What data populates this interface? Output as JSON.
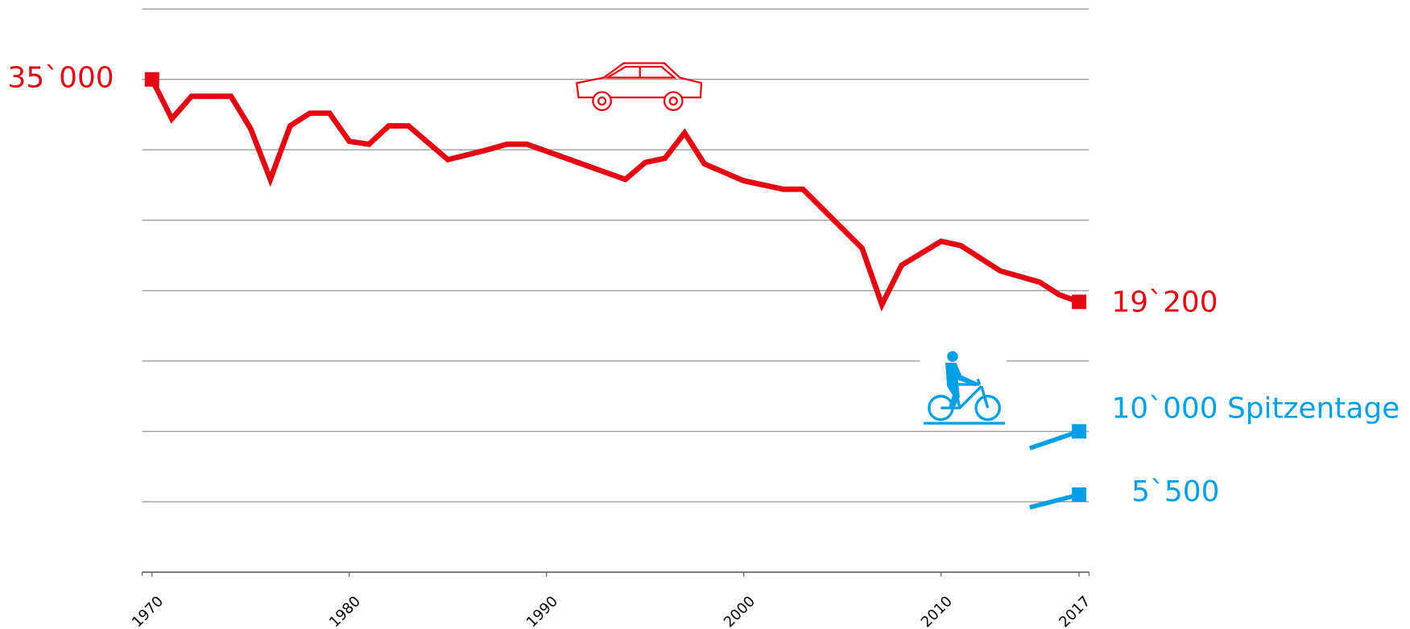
{
  "chart_data": {
    "type": "line",
    "xlim": [
      1969.5,
      2017.5
    ],
    "xticks": [
      1970,
      1980,
      1990,
      2000,
      2010,
      2017
    ],
    "ylim": [
      0,
      40000
    ],
    "yticks": [
      0,
      5000,
      10000,
      15000,
      20000,
      25000,
      30000,
      35000,
      40000
    ],
    "grid": true,
    "series": [
      {
        "color": "#e30613",
        "x": [
          1970,
          1971,
          1972,
          1974,
          1975,
          1976,
          1977,
          1978,
          1979,
          1980,
          1981,
          1982,
          1983,
          1985,
          1987,
          1988,
          1989,
          1994,
          1995,
          1996,
          1997,
          1998,
          2000,
          2002,
          2003,
          2006,
          2007,
          2008,
          2010,
          2011,
          2013,
          2015,
          2016,
          2017
        ],
        "values": [
          35000,
          32200,
          33800,
          33800,
          31500,
          27900,
          31700,
          32600,
          32600,
          30600,
          30400,
          31700,
          31700,
          29300,
          30000,
          30400,
          30400,
          27900,
          29100,
          29400,
          31200,
          29000,
          27800,
          27200,
          27200,
          23000,
          19000,
          21800,
          23500,
          23200,
          21400,
          20600,
          19700,
          19200
        ],
        "value_labels": [
          "35`000",
          null,
          null,
          null,
          null,
          null,
          null,
          null,
          null,
          null,
          null,
          null,
          null,
          null,
          null,
          null,
          null,
          null,
          null,
          null,
          null,
          null,
          null,
          null,
          null,
          null,
          null,
          null,
          null,
          null,
          null,
          null,
          null,
          "19`200"
        ]
      },
      {
        "color": "#009fe3",
        "x": [
          2014.5,
          2017
        ],
        "values": [
          8800,
          10000
        ],
        "value_labels": [
          null,
          "10`000 Spitzentage"
        ]
      },
      {
        "color": "#009fe3",
        "x": [
          2014.5,
          2017
        ],
        "values": [
          4600,
          5500
        ],
        "value_labels": [
          null,
          "5`500"
        ]
      }
    ]
  }
}
